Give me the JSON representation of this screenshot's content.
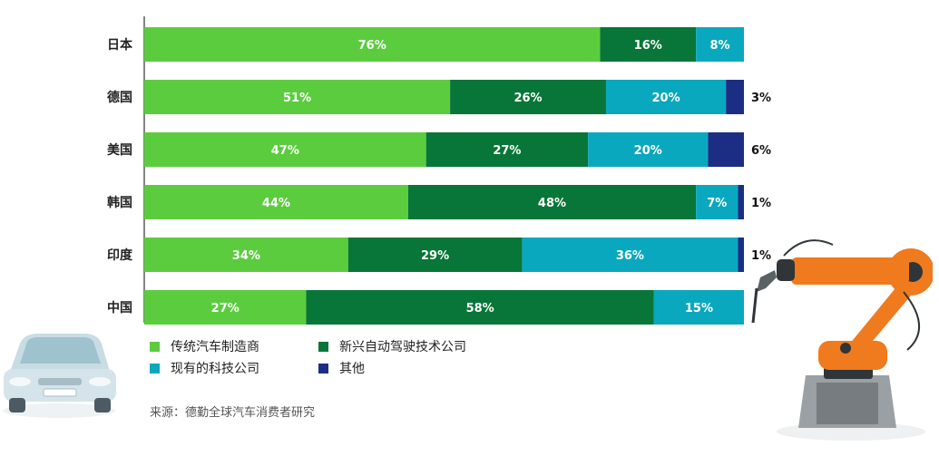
{
  "chart_data": {
    "type": "bar",
    "stacked": true,
    "orientation": "horizontal",
    "categories": [
      "日本",
      "德国",
      "美国",
      "韩国",
      "印度",
      "中国"
    ],
    "series": [
      {
        "name": "传统汽车制造商",
        "color": "#5ccc3f",
        "values": [
          76,
          51,
          47,
          44,
          34,
          27
        ]
      },
      {
        "name": "新兴自动驾驶技术公司",
        "color": "#087638",
        "values": [
          16,
          26,
          27,
          48,
          29,
          58
        ]
      },
      {
        "name": "现有的科技公司",
        "color": "#0aa8bf",
        "values": [
          8,
          20,
          20,
          7,
          36,
          15
        ]
      },
      {
        "name": "其他",
        "color": "#1c2e84",
        "values": [
          0,
          3,
          6,
          1,
          1,
          0
        ]
      }
    ],
    "value_labels": [
      [
        "76%",
        "16%",
        "8%",
        ""
      ],
      [
        "51%",
        "26%",
        "20%",
        "3%"
      ],
      [
        "47%",
        "27%",
        "20%",
        "6%"
      ],
      [
        "44%",
        "48%",
        "7%",
        "1%"
      ],
      [
        "34%",
        "29%",
        "36%",
        "1%"
      ],
      [
        "27%",
        "58%",
        "15%",
        ""
      ]
    ],
    "xlim": [
      0,
      100
    ],
    "grid": false,
    "legend_position": "bottom-left"
  },
  "source": "来源：德勤全球汽车消费者研究",
  "decorations": {
    "left": "car-illustration",
    "right": "robot-arm-illustration"
  }
}
